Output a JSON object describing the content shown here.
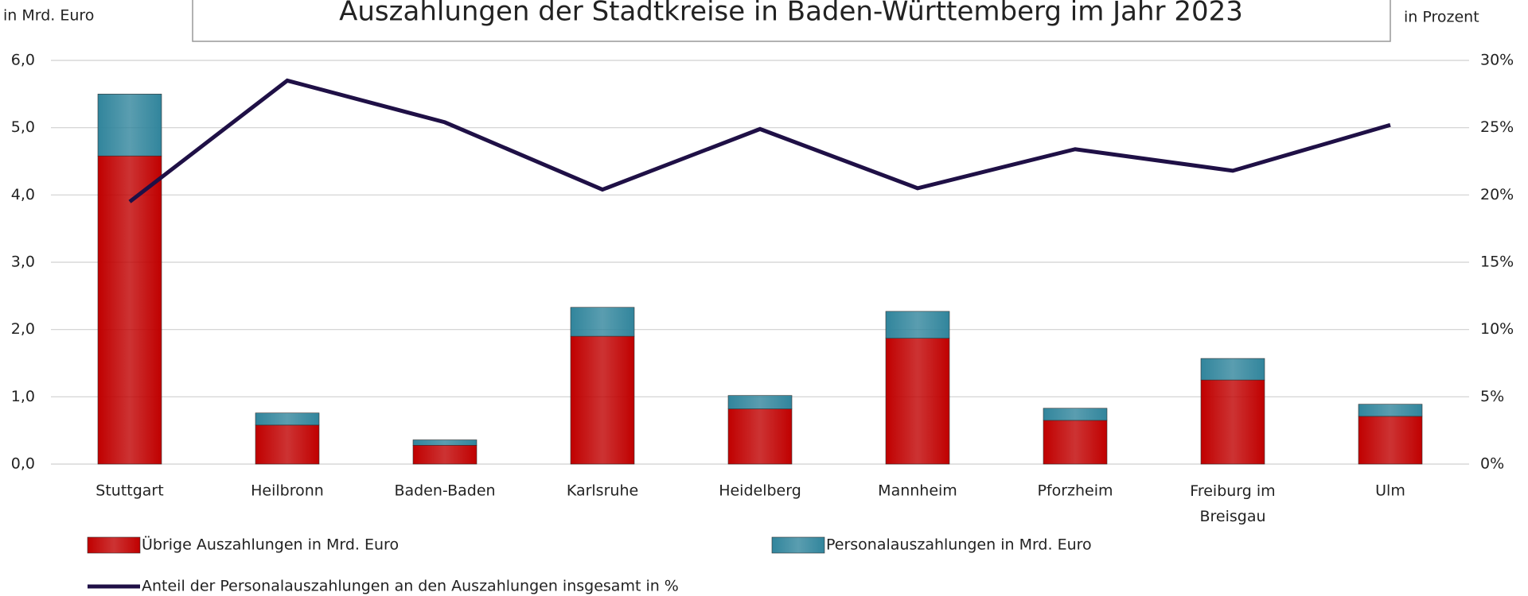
{
  "chart_data": {
    "type": "bar",
    "stacked": true,
    "title": "Auszahlungen der Stadtkreise in Baden-Württemberg im Jahr 2023",
    "ylabel": "in Mrd. Euro",
    "y2label": "in Prozent",
    "categories": [
      "Stuttgart",
      "Heilbronn",
      "Baden-Baden",
      "Karlsruhe",
      "Heidelberg",
      "Mannheim",
      "Pforzheim",
      "Freiburg im Breisgau",
      "Ulm"
    ],
    "series": [
      {
        "name": "Übrige  Auszahlungen in Mrd. Euro",
        "type": "bar",
        "color": "#c00000",
        "values": [
          4.58,
          0.58,
          0.28,
          1.9,
          0.82,
          1.87,
          0.65,
          1.25,
          0.71
        ]
      },
      {
        "name": "Personalauszahlungen in Mrd. Euro",
        "type": "bar",
        "color": "#31859c",
        "values": [
          0.92,
          0.18,
          0.08,
          0.43,
          0.2,
          0.4,
          0.18,
          0.32,
          0.18
        ]
      },
      {
        "name": "Anteil der Personalauszahlungen an den Auszahlungen insgesamt in %",
        "type": "line",
        "axis": "y2",
        "color": "#1f1046",
        "values": [
          19.5,
          28.5,
          25.4,
          20.4,
          24.9,
          20.5,
          23.4,
          21.8,
          25.2
        ]
      }
    ],
    "ylim": [
      0,
      6
    ],
    "yticks": [
      {
        "value": 0,
        "label": "0,0"
      },
      {
        "value": 1,
        "label": "1,0"
      },
      {
        "value": 2,
        "label": "2,0"
      },
      {
        "value": 3,
        "label": "3,0"
      },
      {
        "value": 4,
        "label": "4,0"
      },
      {
        "value": 5,
        "label": "5,0"
      },
      {
        "value": 6,
        "label": "6,0"
      }
    ],
    "y2lim": [
      0,
      30
    ],
    "y2ticks": [
      {
        "value": 0,
        "label": "0%"
      },
      {
        "value": 5,
        "label": "5%"
      },
      {
        "value": 10,
        "label": "10%"
      },
      {
        "value": 15,
        "label": "15%"
      },
      {
        "value": 20,
        "label": "20%"
      },
      {
        "value": 25,
        "label": "25%"
      },
      {
        "value": 30,
        "label": "30%"
      }
    ],
    "grid": true
  }
}
